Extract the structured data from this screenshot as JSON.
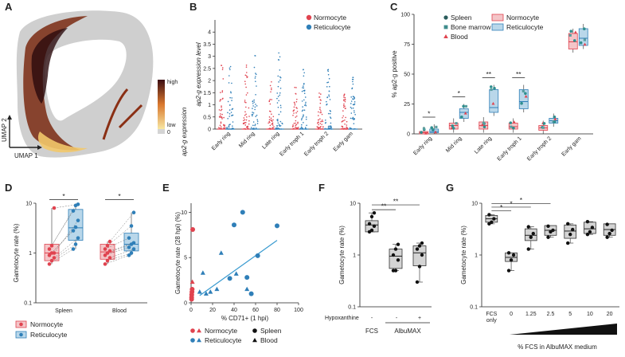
{
  "colors": {
    "normocyte": "#e0434f",
    "reticulocyte": "#2f7fb8",
    "normo_box": "#f4c5c8",
    "retic_box": "#b9d7ea",
    "grey_box": "#d4d4d4",
    "umap_grey": "#cfcfcf",
    "line": "#3a9bd0",
    "axis": "#222222"
  },
  "panels": {
    "A": {
      "label": "A",
      "xlabel": "UMAP 1",
      "ylabel": "UMAP 2",
      "colorbar_title": "ap2-g expression",
      "colorbar_high": "high",
      "colorbar_low": "low",
      "colorbar_zero": "0"
    },
    "B": {
      "label": "B"
    },
    "C": {
      "label": "C"
    },
    "D": {
      "label": "D"
    },
    "E": {
      "label": "E"
    },
    "F": {
      "label": "F",
      "row_label": "Hypoxanthine",
      "row_values": [
        "-",
        "-",
        "+"
      ],
      "groups": [
        "FCS",
        "AlbuMAX"
      ]
    },
    "G": {
      "label": "G"
    }
  },
  "chart_data": [
    {
      "panel": "B",
      "type": "scatter",
      "title": "",
      "ylabel": "ap2-g expression level",
      "ylim": [
        0,
        4.5
      ],
      "yticks": [
        "0",
        "0.5",
        "1",
        "1.5",
        "2",
        "2.5",
        "3",
        "3.5",
        "4"
      ],
      "categories": [
        "Early ring",
        "Mid ring",
        "Late ring",
        "Early troph 1",
        "Early troph 2",
        "Early gam"
      ],
      "legend": [
        "Normocyte",
        "Reticulocyte"
      ],
      "series": [
        {
          "name": "Normocyte",
          "max": [
            2.9,
            2.8,
            2.1,
            1.8,
            1.6,
            1.5
          ]
        },
        {
          "name": "Reticulocyte",
          "max": [
            3.2,
            3.3,
            3.2,
            2.6,
            2.5,
            2.2
          ]
        }
      ]
    },
    {
      "panel": "C",
      "type": "bar",
      "ylabel": "% ap2-g positive",
      "ylim": [
        0,
        100
      ],
      "yticks": [
        "0",
        "25",
        "50",
        "75",
        "100"
      ],
      "categories": [
        "Early ring",
        "Mid ring",
        "Late ring",
        "Early troph 1",
        "Early troph 2",
        "Early gam"
      ],
      "legend": [
        "Spleen",
        "Bone marrow",
        "Blood",
        "Normocyte",
        "Reticulocyte"
      ],
      "significance": [
        "*",
        "*",
        "**",
        "**",
        "",
        ""
      ],
      "series": [
        {
          "name": "Normocyte",
          "median": [
            1,
            7,
            7,
            6,
            5,
            77
          ],
          "q1": [
            0,
            4,
            4,
            4,
            3,
            71
          ],
          "q3": [
            2,
            9,
            10,
            9,
            7,
            84
          ]
        },
        {
          "name": "Reticulocyte",
          "median": [
            2,
            18,
            22,
            27,
            11,
            80
          ],
          "q1": [
            1,
            13,
            18,
            21,
            9,
            74
          ],
          "q3": [
            4,
            21,
            37,
            37,
            13,
            88
          ]
        }
      ]
    },
    {
      "panel": "D",
      "type": "bar",
      "ylabel": "Gametocyte rate (%)",
      "ylim": [
        0.1,
        10
      ],
      "yscale": "log",
      "yticks": [
        "0.1",
        "1",
        "10"
      ],
      "categories": [
        "Spleen",
        "Blood"
      ],
      "legend": [
        "Normocyte",
        "Reticulocyte"
      ],
      "significance": [
        "*",
        "*"
      ],
      "series": [
        {
          "name": "Normocyte",
          "median": [
            1.0,
            1.05
          ],
          "q1": [
            0.7,
            0.75
          ],
          "q3": [
            1.5,
            1.5
          ],
          "values": [
            [
              0.6,
              0.7,
              0.8,
              0.9,
              1.0,
              1.0,
              1.2,
              1.4,
              8.0
            ],
            [
              0.6,
              0.7,
              0.8,
              0.9,
              1.0,
              1.1,
              1.2,
              1.4,
              1.7
            ]
          ]
        },
        {
          "name": "Reticulocyte",
          "median": [
            3.2,
            1.5
          ],
          "q1": [
            1.8,
            1.1
          ],
          "q3": [
            7.5,
            2.5
          ],
          "values": [
            [
              1.2,
              1.5,
              2.0,
              2.8,
              3.3,
              4.5,
              7.0,
              9.0,
              9.5
            ],
            [
              0.9,
              1.0,
              1.2,
              1.3,
              1.5,
              1.6,
              2.0,
              3.5,
              6.5
            ]
          ]
        }
      ]
    },
    {
      "panel": "E",
      "type": "scatter",
      "xlabel": "% CD71+ (1 hpi)",
      "ylabel": "Gametocyte rate (28 hpi) (%)",
      "xlim": [
        0,
        100
      ],
      "ylim": [
        0,
        11
      ],
      "xticks": [
        "0",
        "20",
        "40",
        "60",
        "80",
        "100"
      ],
      "yticks": [
        "0",
        "5",
        "10"
      ],
      "legend": [
        "Normocyte",
        "Reticulocyte",
        "Spleen",
        "Blood"
      ],
      "series": [
        {
          "name": "Normocyte Spleen",
          "x": [
            0.5,
            0.5,
            0.6,
            0.8,
            1,
            1.5
          ],
          "y": [
            0.4,
            0.6,
            0.9,
            1.2,
            1.5,
            8.1
          ]
        },
        {
          "name": "Normocyte Blood",
          "x": [
            0.5,
            0.7,
            1,
            1.2
          ],
          "y": [
            0.6,
            1.0,
            1.4,
            2.3
          ]
        },
        {
          "name": "Reticulocyte Spleen",
          "x": [
            48,
            80,
            40,
            62,
            52,
            36,
            56
          ],
          "y": [
            10.0,
            8.5,
            8.6,
            5.2,
            2.8,
            2.7,
            1.0
          ]
        },
        {
          "name": "Reticulocyte Blood",
          "x": [
            11,
            8,
            14,
            18,
            24,
            28,
            42,
            52
          ],
          "y": [
            3.3,
            1.2,
            1.0,
            1.2,
            1.5,
            5.5,
            3.2,
            1.5
          ]
        }
      ],
      "fit_line": {
        "x": [
          8,
          80
        ],
        "y": [
          0.8,
          6.9
        ]
      }
    },
    {
      "panel": "F",
      "type": "bar",
      "ylabel": "Gametocyte rate (%)",
      "yscale": "log",
      "ylim": [
        0.1,
        10
      ],
      "yticks": [
        "0.1",
        "1",
        "10"
      ],
      "categories": [
        "FCS -",
        "AlbuMAX -",
        "AlbuMAX +"
      ],
      "significance": [
        "**",
        "**"
      ],
      "series": [
        {
          "name": "Gametocyte rate",
          "median": [
            3.8,
            0.95,
            1.1
          ],
          "q1": [
            2.8,
            0.55,
            0.62
          ],
          "q3": [
            4.6,
            1.3,
            1.5
          ],
          "values": [
            [
              2.8,
              3.0,
              3.6,
              4.0,
              5.5,
              6.5
            ],
            [
              0.5,
              0.5,
              0.8,
              1.0,
              1.3,
              1.6
            ],
            [
              0.3,
              0.6,
              1.0,
              1.3,
              1.5,
              1.7
            ]
          ]
        }
      ]
    },
    {
      "panel": "G",
      "type": "bar",
      "xlabel": "% FCS in AlbuMAX medium",
      "ylabel": "Gametocyte rate (%)",
      "yscale": "log",
      "ylim": [
        0.1,
        10
      ],
      "yticks": [
        "0.1",
        "1",
        "10"
      ],
      "categories": [
        "FCS only",
        "0",
        "1.25",
        "2.5",
        "5",
        "10",
        "20"
      ],
      "significance": [
        "*",
        "*",
        "*"
      ],
      "series": [
        {
          "name": "Gametocyte rate",
          "median": [
            5.0,
            0.9,
            2.4,
            3.0,
            2.9,
            3.2,
            3.1
          ],
          "q1": [
            4.3,
            0.75,
            1.9,
            2.4,
            2.1,
            2.6,
            2.4
          ],
          "q3": [
            5.8,
            1.1,
            3.2,
            3.7,
            3.8,
            4.3,
            4.0
          ],
          "values": [
            [
              4.0,
              4.3,
              5.0,
              6.0
            ],
            [
              0.5,
              0.8,
              1.0,
              1.1
            ],
            [
              1.3,
              2.2,
              2.6,
              3.5
            ],
            [
              2.2,
              2.8,
              3.0,
              3.6
            ],
            [
              1.7,
              2.5,
              3.1,
              4.0
            ],
            [
              2.5,
              2.8,
              3.4,
              4.4
            ],
            [
              2.2,
              2.6,
              3.0,
              3.9
            ]
          ]
        }
      ]
    }
  ]
}
